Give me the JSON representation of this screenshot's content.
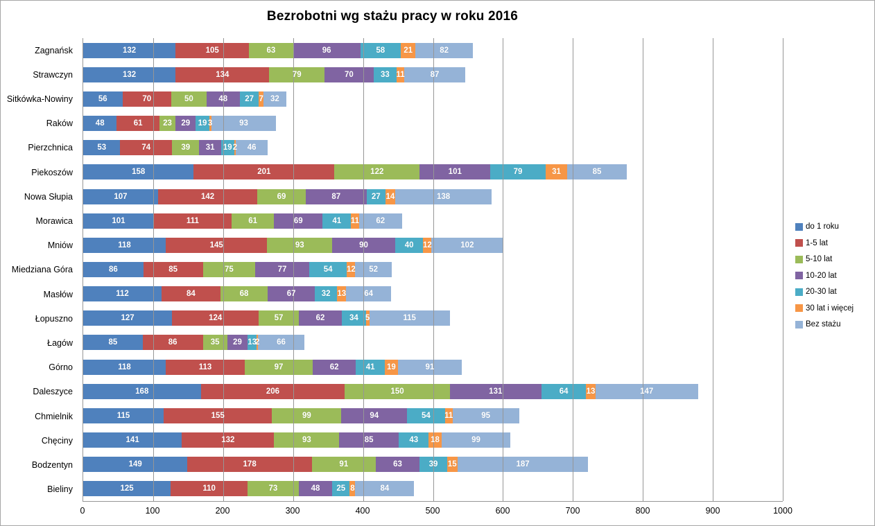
{
  "title": "Bezrobotni wg stażu pracy w roku 2016",
  "chart_data": {
    "type": "bar",
    "subtype": "horizontal-stacked",
    "title": "Bezrobotni wg stażu pracy w roku 2016",
    "categories": [
      "Zagnańsk",
      "Strawczyn",
      "Sitkówka-Nowiny",
      "Raków",
      "Pierzchnica",
      "Piekoszów",
      "Nowa Słupia",
      "Morawica",
      "Mniów",
      "Miedziana Góra",
      "Masłów",
      "Łopuszno",
      "Łagów",
      "Górno",
      "Daleszyce",
      "Chmielnik",
      "Chęciny",
      "Bodzentyn",
      "Bieliny"
    ],
    "series": [
      {
        "name": "do 1 roku",
        "color": "#4F81BD",
        "values": [
          132,
          132,
          56,
          48,
          53,
          158,
          107,
          101,
          118,
          86,
          112,
          127,
          85,
          118,
          168,
          115,
          141,
          149,
          125
        ]
      },
      {
        "name": "1-5 lat",
        "color": "#C0504D",
        "values": [
          105,
          134,
          70,
          61,
          74,
          201,
          142,
          111,
          145,
          85,
          84,
          124,
          86,
          113,
          206,
          155,
          132,
          178,
          110
        ]
      },
      {
        "name": "5-10 lat",
        "color": "#9BBB59",
        "values": [
          63,
          79,
          50,
          23,
          39,
          122,
          69,
          61,
          93,
          75,
          68,
          57,
          35,
          97,
          150,
          99,
          93,
          91,
          73
        ]
      },
      {
        "name": "10-20 lat",
        "color": "#8064A2",
        "values": [
          96,
          70,
          48,
          29,
          31,
          101,
          87,
          69,
          90,
          77,
          67,
          62,
          29,
          62,
          131,
          94,
          85,
          63,
          48
        ]
      },
      {
        "name": "20-30 lat",
        "color": "#4BACC6",
        "values": [
          58,
          33,
          27,
          19,
          19,
          79,
          27,
          41,
          40,
          54,
          32,
          34,
          13,
          41,
          64,
          54,
          43,
          39,
          25
        ]
      },
      {
        "name": "30 lat i więcej",
        "color": "#F79646",
        "values": [
          21,
          11,
          7,
          3,
          2,
          31,
          14,
          11,
          12,
          12,
          13,
          5,
          2,
          19,
          13,
          11,
          18,
          15,
          8
        ]
      },
      {
        "name": "Bez stażu",
        "color": "#95B3D7",
        "values": [
          82,
          87,
          32,
          93,
          46,
          85,
          138,
          62,
          102,
          52,
          64,
          115,
          66,
          91,
          147,
          95,
          99,
          187,
          84
        ]
      }
    ],
    "x_axis": {
      "min": 0,
      "max": 1000,
      "tick_labels": [
        "0",
        "100",
        "200",
        "300",
        "400",
        "500",
        "600",
        "700",
        "800",
        "900",
        "1000"
      ]
    },
    "grid": true,
    "legend_position": "right",
    "data_labels": "inside-center-white",
    "grid_color": "#969696",
    "background_color": "#FFFFFF"
  }
}
